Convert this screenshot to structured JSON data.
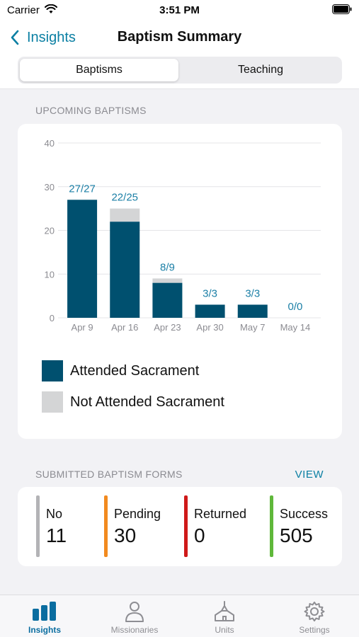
{
  "status_bar": {
    "carrier": "Carrier",
    "time": "3:51 PM"
  },
  "nav": {
    "back_label": "Insights",
    "title": "Baptism Summary"
  },
  "segments": [
    {
      "label": "Baptisms",
      "active": true
    },
    {
      "label": "Teaching",
      "active": false
    }
  ],
  "upcoming": {
    "section_title": "UPCOMING BAPTISMS"
  },
  "chart_data": {
    "type": "bar",
    "stacked": true,
    "categories": [
      "Apr 9",
      "Apr 16",
      "Apr 23",
      "Apr 30",
      "May 7",
      "May 14"
    ],
    "series": [
      {
        "name": "Attended Sacrament",
        "color": "#00506f",
        "values": [
          27,
          22,
          8,
          3,
          3,
          0
        ]
      },
      {
        "name": "Not Attended Sacrament",
        "color": "#d4d5d6",
        "values": [
          0,
          3,
          1,
          0,
          0,
          0
        ]
      }
    ],
    "data_labels": [
      "27/27",
      "22/25",
      "8/9",
      "3/3",
      "3/3",
      "0/0"
    ],
    "ylim": [
      0,
      40
    ],
    "yticks": [
      0,
      10,
      20,
      30,
      40
    ],
    "grid": true,
    "legend_position": "bottom",
    "label_color": "#1b7fa6"
  },
  "legend": [
    {
      "label": "Attended Sacrament",
      "color": "#00506f"
    },
    {
      "label": "Not Attended Sacrament",
      "color": "#d4d5d6"
    }
  ],
  "forms": {
    "section_title": "SUBMITTED BAPTISM FORMS",
    "view_label": "VIEW",
    "stats": [
      {
        "label": "No",
        "value": "11",
        "color": "#b3b3b6"
      },
      {
        "label": "Pending",
        "value": "30",
        "color": "#f28a1f"
      },
      {
        "label": "Returned",
        "value": "0",
        "color": "#cf1919"
      },
      {
        "label": "Success",
        "value": "505",
        "color": "#5fb83a"
      }
    ]
  },
  "tab_bar": [
    {
      "label": "Insights",
      "icon": "bar-chart-icon",
      "active": true
    },
    {
      "label": "Missionaries",
      "icon": "person-icon",
      "active": false
    },
    {
      "label": "Units",
      "icon": "church-icon",
      "active": false
    },
    {
      "label": "Settings",
      "icon": "gear-icon",
      "active": false
    }
  ]
}
